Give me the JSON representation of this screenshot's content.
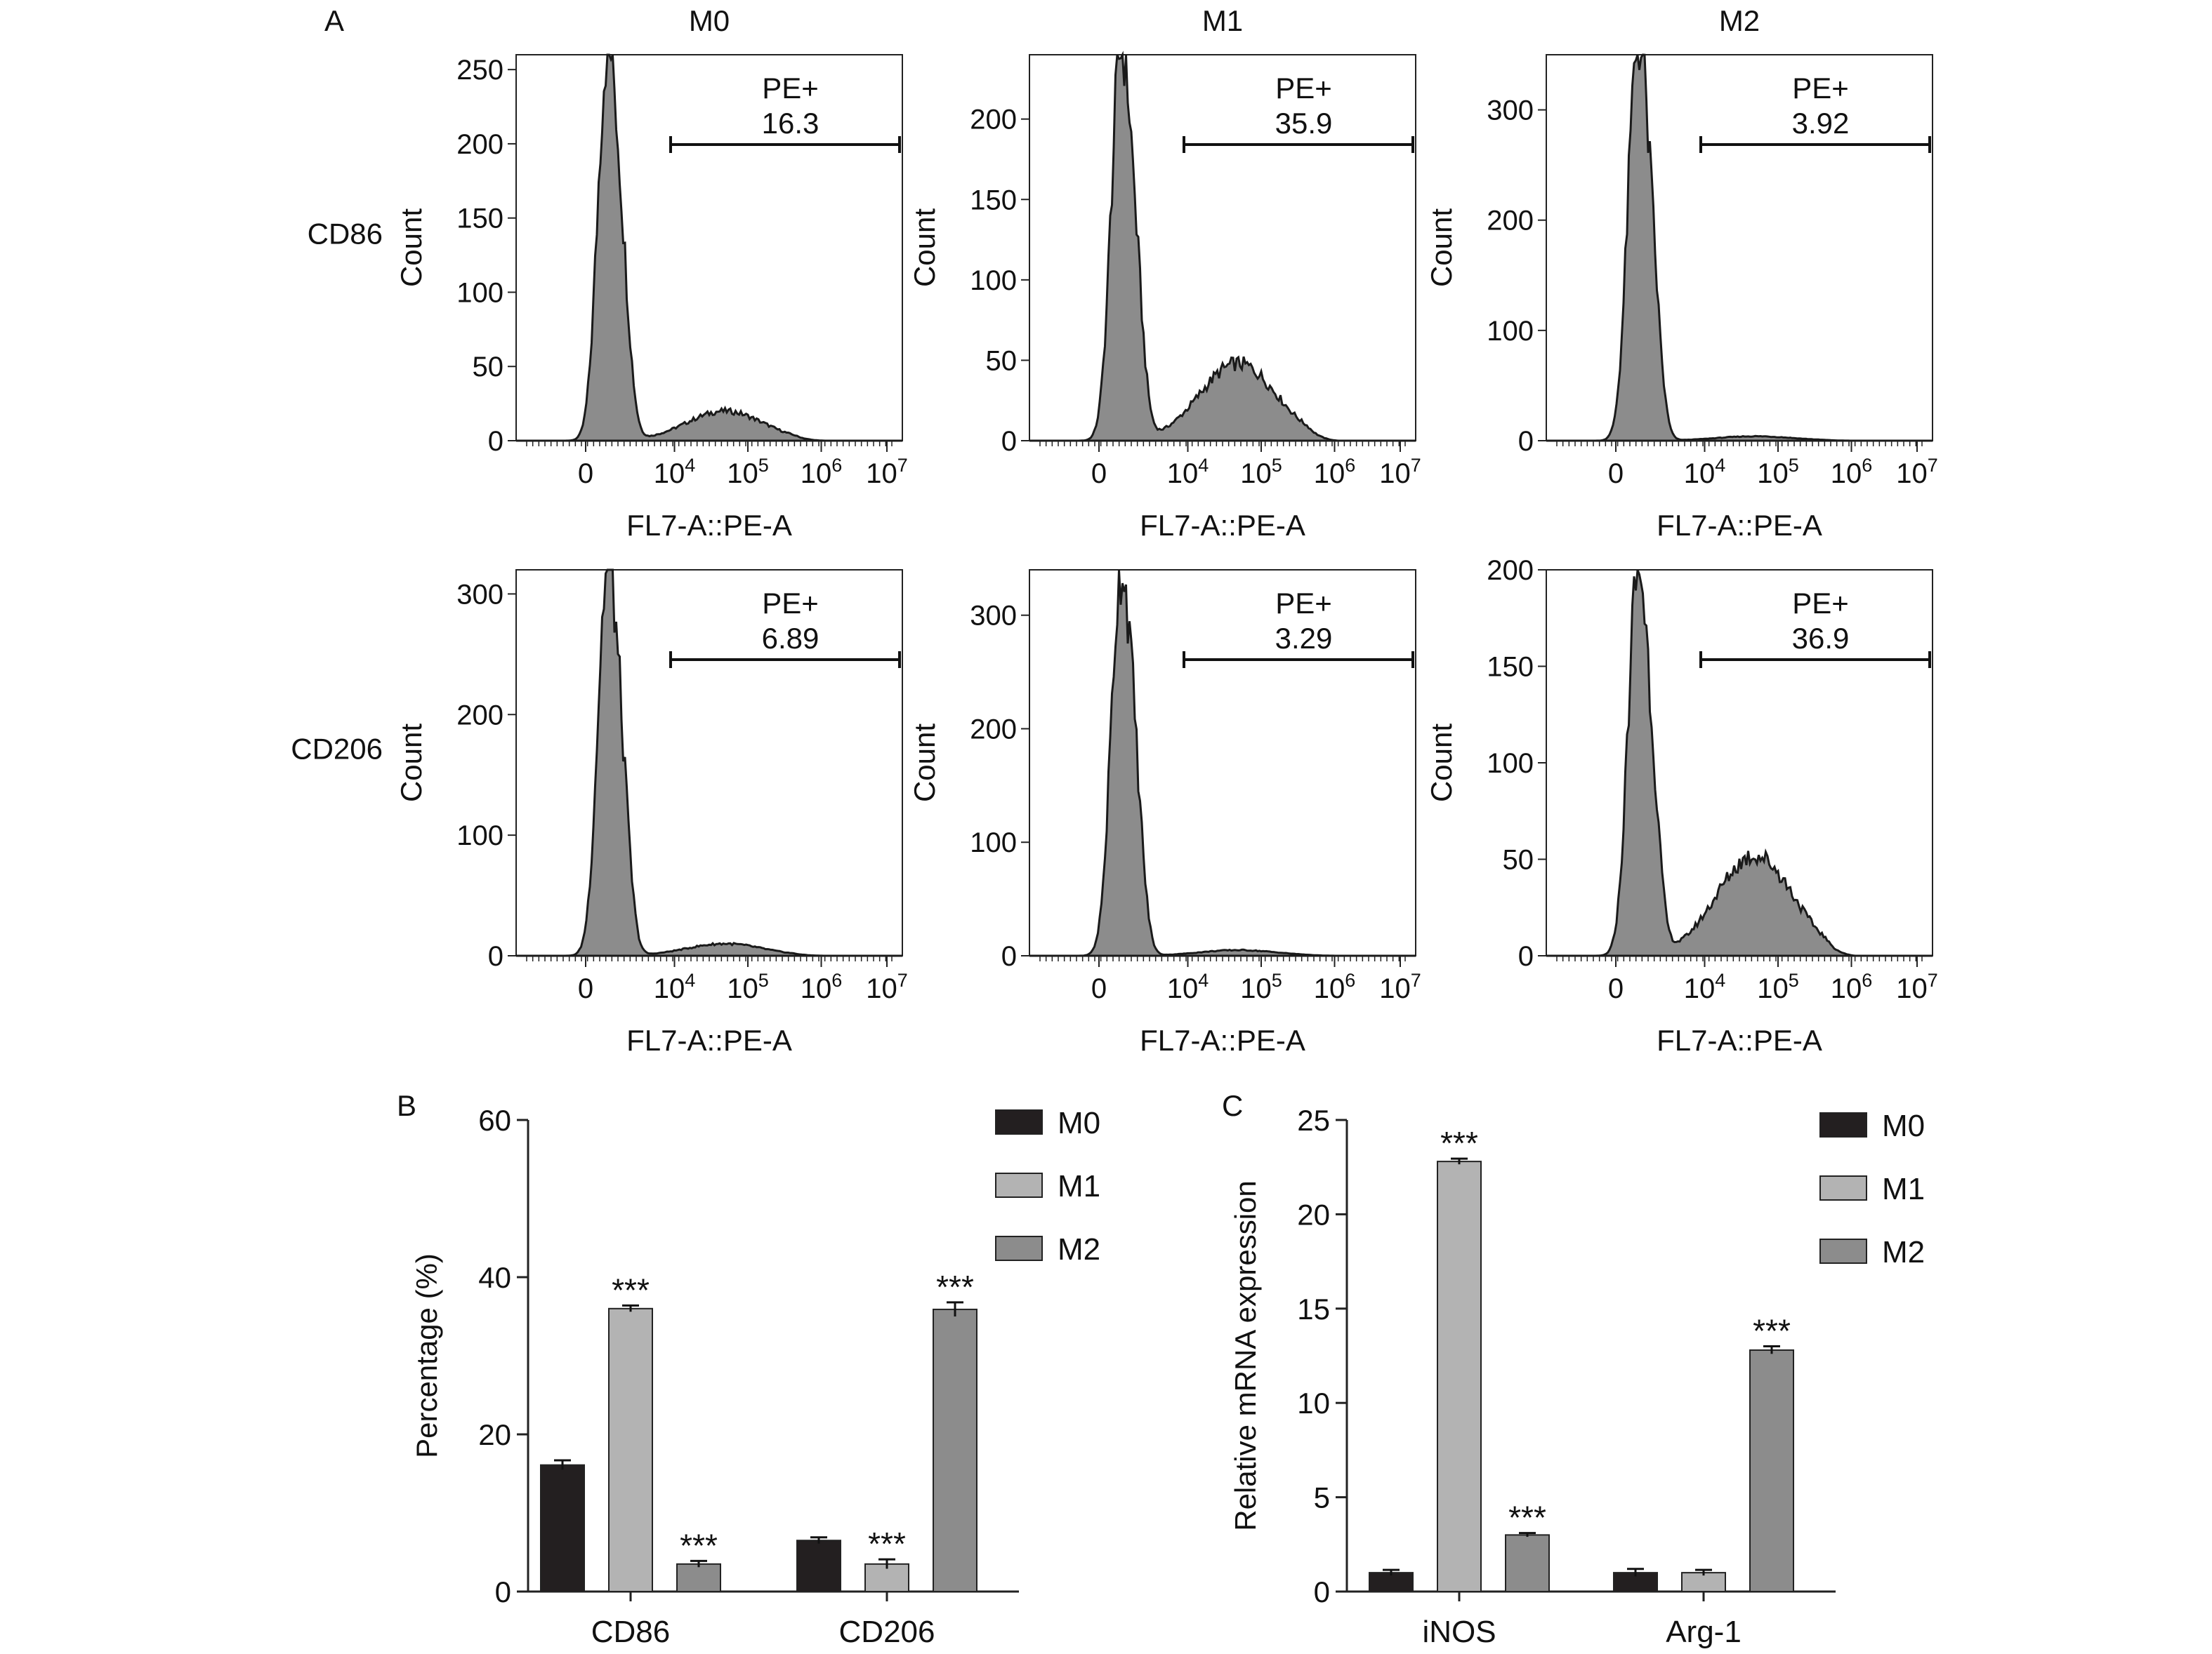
{
  "panel_labels": {
    "A": "A",
    "B": "B",
    "C": "C"
  },
  "chart_data": [
    {
      "type": "histogram-grid",
      "panel": "A",
      "column_titles": [
        "M0",
        "M1",
        "M2"
      ],
      "row_labels": [
        "CD86",
        "CD206"
      ],
      "xlabel": "FL7-A::PE-A",
      "ylabel": "Count",
      "x_tick_labels": [
        "0",
        "10",
        "10",
        "10",
        "10"
      ],
      "x_tick_exponents": [
        "",
        "4",
        "5",
        "6",
        "7"
      ],
      "gate_label": "PE+",
      "plots": [
        {
          "row": 0,
          "col": 0,
          "gate_value": "16.3",
          "ylim": [
            0,
            260
          ],
          "yticks": [
            0,
            50,
            100,
            150,
            200,
            250
          ],
          "peak": 250,
          "tail": 20
        },
        {
          "row": 0,
          "col": 1,
          "gate_value": "35.9",
          "ylim": [
            0,
            240
          ],
          "yticks": [
            0,
            50,
            100,
            150,
            200
          ],
          "peak": 230,
          "tail": 48
        },
        {
          "row": 0,
          "col": 2,
          "gate_value": "3.92",
          "ylim": [
            0,
            350
          ],
          "yticks": [
            0,
            100,
            200,
            300
          ],
          "peak": 340,
          "tail": 4
        },
        {
          "row": 1,
          "col": 0,
          "gate_value": "6.89",
          "ylim": [
            0,
            320
          ],
          "yticks": [
            0,
            100,
            200,
            300
          ],
          "peak": 305,
          "tail": 10
        },
        {
          "row": 1,
          "col": 1,
          "gate_value": "3.29",
          "ylim": [
            0,
            340
          ],
          "yticks": [
            0,
            100,
            200,
            300
          ],
          "peak": 320,
          "tail": 5
        },
        {
          "row": 1,
          "col": 2,
          "gate_value": "36.9",
          "ylim": [
            0,
            200
          ],
          "yticks": [
            0,
            50,
            100,
            150,
            200
          ],
          "peak": 188,
          "tail": 52
        }
      ]
    },
    {
      "type": "bar",
      "panel": "B",
      "categories": [
        "CD86",
        "CD206"
      ],
      "series": [
        {
          "name": "M0",
          "values": [
            16.1,
            6.5
          ],
          "errors": [
            0.6,
            0.4
          ],
          "sig": [
            "",
            ""
          ]
        },
        {
          "name": "M1",
          "values": [
            36.0,
            3.5
          ],
          "errors": [
            0.4,
            0.6
          ],
          "sig": [
            "***",
            "***"
          ]
        },
        {
          "name": "M2",
          "values": [
            3.5,
            35.9
          ],
          "errors": [
            0.4,
            0.9
          ],
          "sig": [
            "***",
            "***"
          ]
        }
      ],
      "ylabel": "Percentage (%)",
      "ylim": [
        0,
        60
      ],
      "yticks": [
        0,
        20,
        40,
        60
      ],
      "legend": "top-right",
      "colors": [
        "#231f20",
        "#b3b3b3",
        "#8c8c8c"
      ]
    },
    {
      "type": "bar",
      "panel": "C",
      "categories": [
        "iNOS",
        "Arg-1"
      ],
      "series": [
        {
          "name": "M0",
          "values": [
            1.0,
            1.0
          ],
          "errors": [
            0.15,
            0.2
          ],
          "sig": [
            "",
            ""
          ]
        },
        {
          "name": "M1",
          "values": [
            22.8,
            1.0
          ],
          "errors": [
            0.15,
            0.15
          ],
          "sig": [
            "***",
            ""
          ]
        },
        {
          "name": "M2",
          "values": [
            3.0,
            12.8
          ],
          "errors": [
            0.1,
            0.2
          ],
          "sig": [
            "***",
            "***"
          ]
        }
      ],
      "ylabel": "Relative mRNA expression",
      "ylim": [
        0,
        25
      ],
      "yticks": [
        0,
        5,
        10,
        15,
        20,
        25
      ],
      "legend": "top-right",
      "colors": [
        "#231f20",
        "#b3b3b3",
        "#8c8c8c"
      ]
    }
  ]
}
